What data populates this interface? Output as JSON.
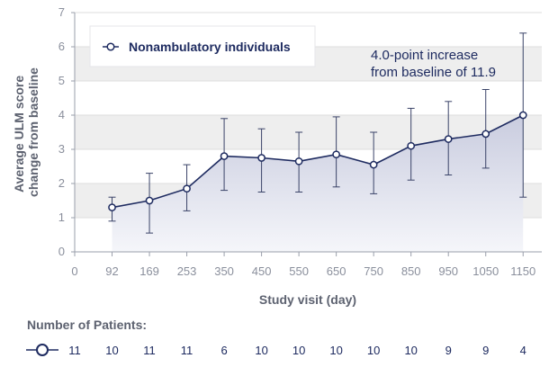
{
  "chart_data": {
    "type": "line",
    "ylabel": "Average ULM score change from baseline",
    "xlabel": "Study visit (day)",
    "x_ticks": [
      "0",
      "92",
      "169",
      "253",
      "350",
      "450",
      "550",
      "650",
      "750",
      "850",
      "950",
      "1050",
      "1150"
    ],
    "y_ticks": [
      0,
      1,
      2,
      3,
      4,
      5,
      6,
      7
    ],
    "ylim": [
      0,
      7
    ],
    "grid": true,
    "series": [
      {
        "name": "Nonambulatory individuals",
        "color": "#1e2b60",
        "points": [
          {
            "x": "92",
            "y": 1.3,
            "lo": 0.9,
            "hi": 1.6
          },
          {
            "x": "169",
            "y": 1.5,
            "lo": 0.55,
            "hi": 2.3
          },
          {
            "x": "253",
            "y": 1.85,
            "lo": 1.2,
            "hi": 2.55
          },
          {
            "x": "350",
            "y": 2.8,
            "lo": 1.8,
            "hi": 3.9
          },
          {
            "x": "450",
            "y": 2.75,
            "lo": 1.75,
            "hi": 3.6
          },
          {
            "x": "550",
            "y": 2.65,
            "lo": 1.75,
            "hi": 3.5
          },
          {
            "x": "650",
            "y": 2.85,
            "lo": 1.9,
            "hi": 3.95
          },
          {
            "x": "750",
            "y": 2.55,
            "lo": 1.7,
            "hi": 3.5
          },
          {
            "x": "850",
            "y": 3.1,
            "lo": 2.1,
            "hi": 4.2
          },
          {
            "x": "950",
            "y": 3.3,
            "lo": 2.25,
            "hi": 4.4
          },
          {
            "x": "1050",
            "y": 3.45,
            "lo": 2.45,
            "hi": 4.75
          },
          {
            "x": "1150",
            "y": 4.0,
            "lo": 1.6,
            "hi": 6.4
          }
        ]
      }
    ],
    "legend": {
      "label": "Nonambulatory individuals",
      "placement": "top-left"
    },
    "annotation": [
      "4.0-point increase",
      "from baseline of 11.9"
    ],
    "colors": {
      "line": "#1e2b60",
      "marker_fill": "#ffffff",
      "area_top": "#c9ccdf",
      "area_bottom": "#f5f6fa",
      "grid": "#dddddd",
      "band": "#eeeeee",
      "axis": "#9a9fab"
    }
  },
  "patients": {
    "title": "Number of Patients:",
    "counts": [
      "11",
      "10",
      "11",
      "11",
      "6",
      "10",
      "10",
      "10",
      "10",
      "10",
      "9",
      "9",
      "4"
    ]
  }
}
